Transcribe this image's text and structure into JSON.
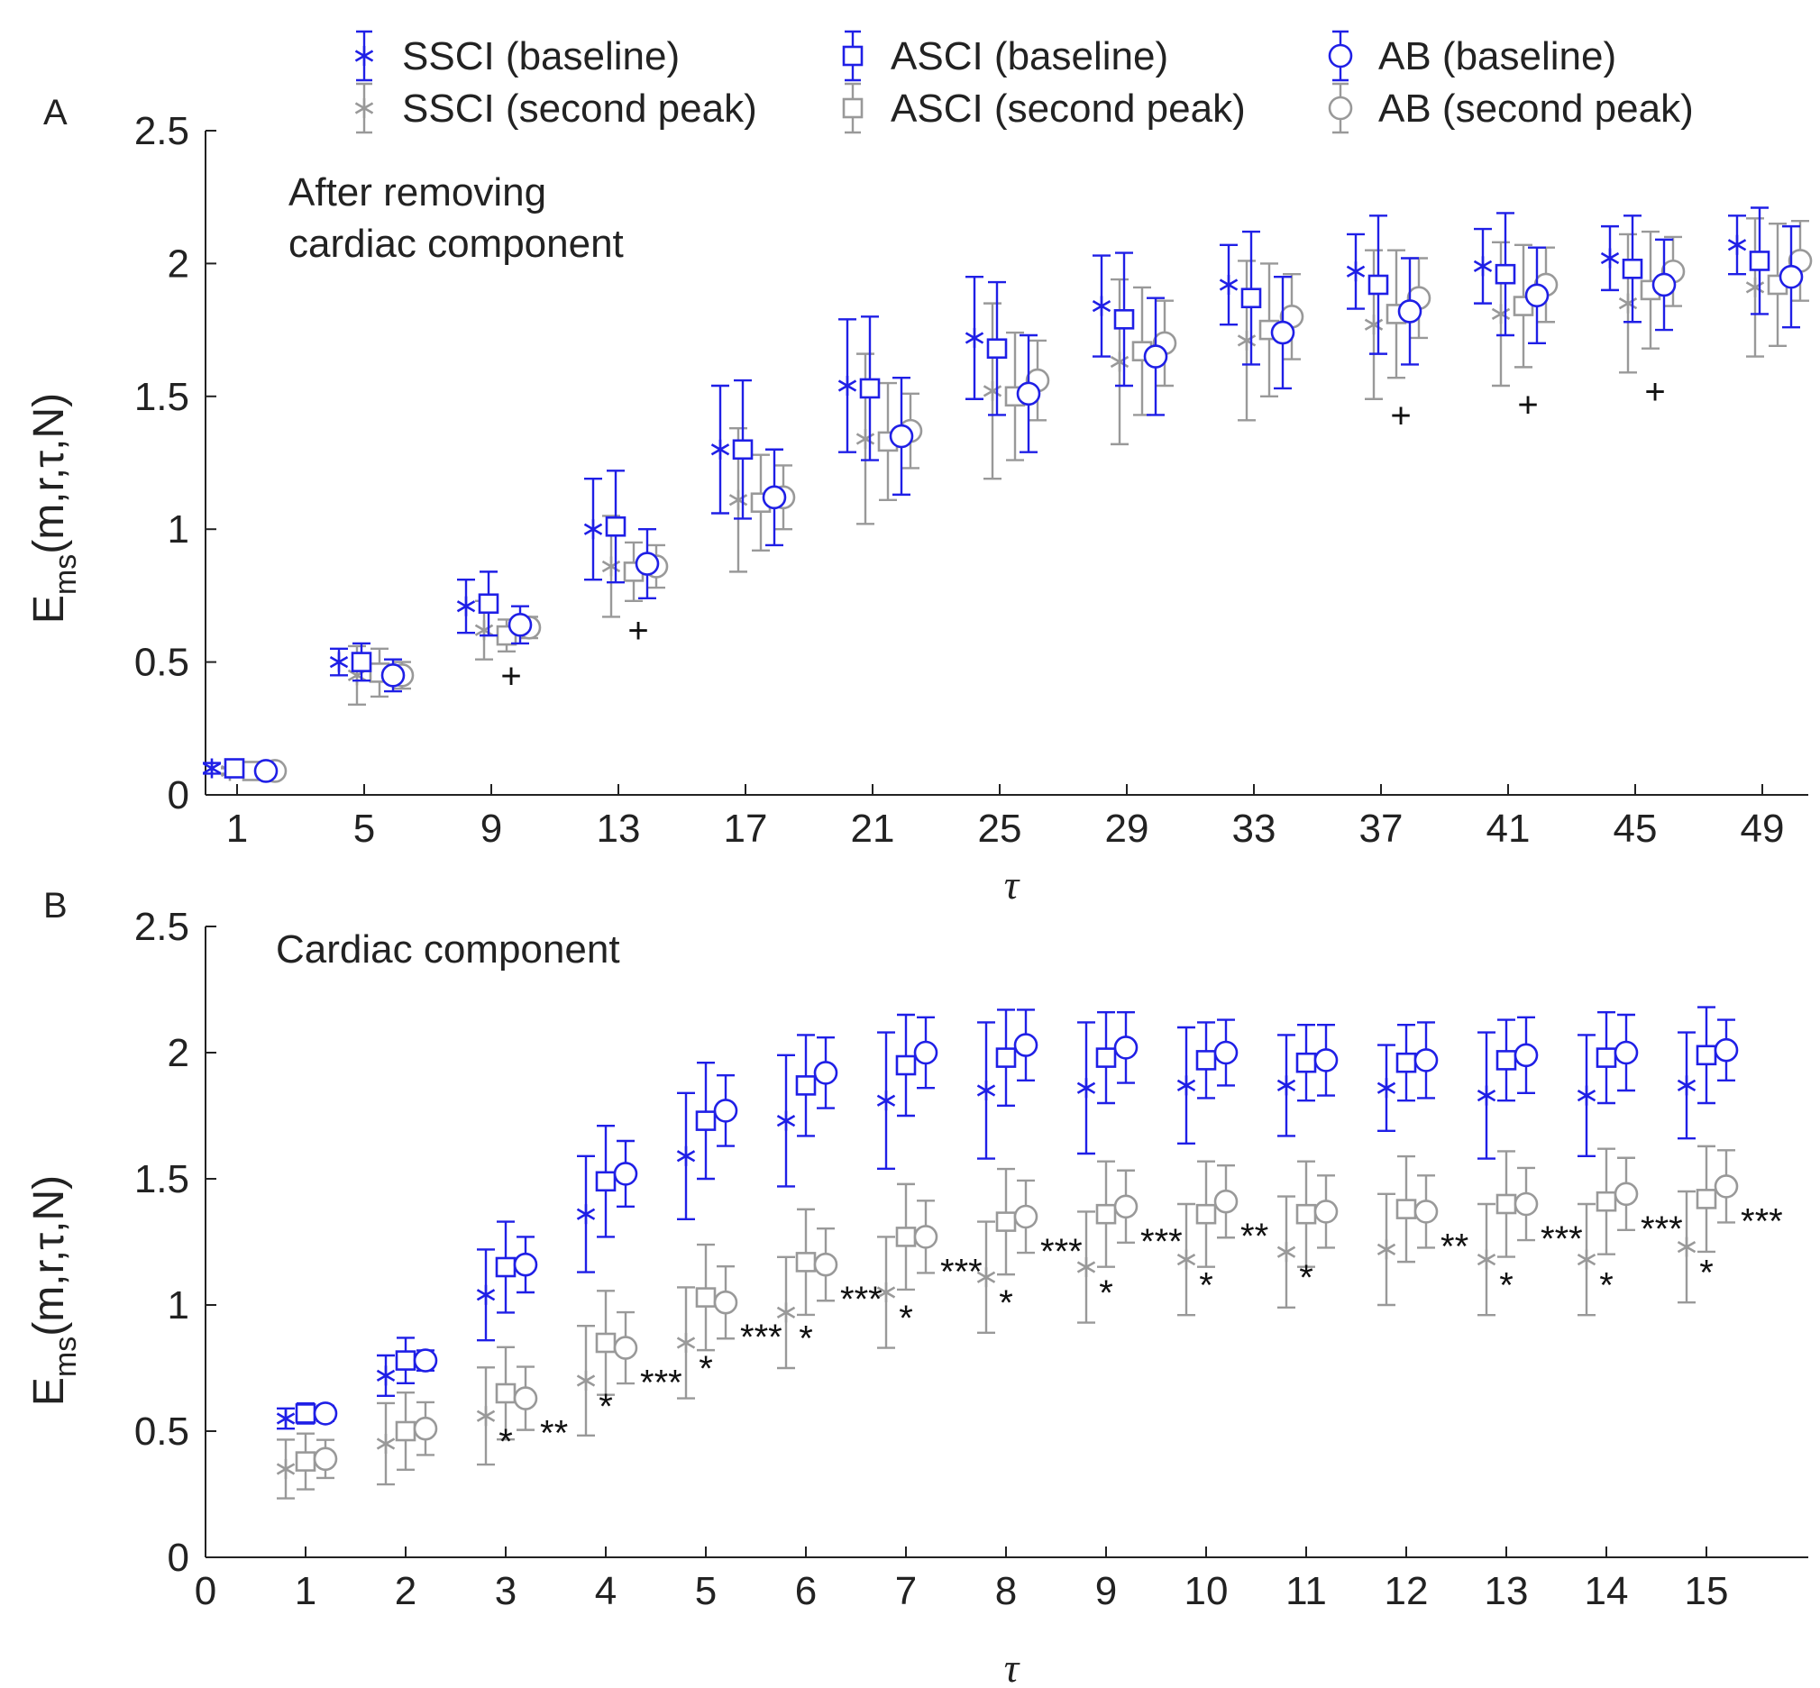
{
  "legend": [
    {
      "label": "SSCI (baseline)",
      "marker": "star",
      "color": "#1f1fe6"
    },
    {
      "label": "ASCI (baseline)",
      "marker": "square",
      "color": "#1f1fe6"
    },
    {
      "label": "AB (baseline)",
      "marker": "circle",
      "color": "#1f1fe6"
    },
    {
      "label": "SSCI (second peak)",
      "marker": "star",
      "color": "#999999"
    },
    {
      "label": "ASCI (second peak)",
      "marker": "square",
      "color": "#999999"
    },
    {
      "label": "AB (second peak)",
      "marker": "circle",
      "color": "#999999"
    }
  ],
  "chart_data": [
    {
      "panel": "A",
      "type": "scatter",
      "subtype": "errorbar",
      "title": "After removing cardiac component",
      "annotation_lines": [
        "After removing",
        "cardiac component"
      ],
      "xlabel": "τ",
      "ylabel": {
        "main": "E",
        "sub": "ms",
        "rest": "(m,r,τ,N)"
      },
      "x_ticks": [
        1,
        5,
        9,
        13,
        17,
        21,
        25,
        29,
        33,
        37,
        41,
        45,
        49
      ],
      "xlim": [
        0,
        51.5
      ],
      "ylim": [
        0,
        2.5
      ],
      "y_ticks": [
        "0",
        "0.5",
        "1",
        "1.5",
        "2",
        "2.5"
      ],
      "series": [
        {
          "name": "SSCI (baseline)",
          "marker": "star",
          "color": "#1f1fe6",
          "values": [
            0.1,
            0.5,
            0.71,
            1.0,
            1.3,
            1.54,
            1.72,
            1.84,
            1.92,
            1.97,
            1.99,
            2.02,
            2.07
          ],
          "errors": [
            0.02,
            0.05,
            0.1,
            0.19,
            0.24,
            0.25,
            0.23,
            0.19,
            0.15,
            0.14,
            0.14,
            0.12,
            0.11
          ]
        },
        {
          "name": "ASCI (baseline)",
          "marker": "square",
          "color": "#1f1fe6",
          "values": [
            0.1,
            0.5,
            0.72,
            1.01,
            1.3,
            1.53,
            1.68,
            1.79,
            1.87,
            1.92,
            1.96,
            1.98,
            2.01
          ],
          "errors": [
            0.02,
            0.07,
            0.12,
            0.21,
            0.26,
            0.27,
            0.25,
            0.25,
            0.25,
            0.26,
            0.23,
            0.2,
            0.2
          ]
        },
        {
          "name": "AB (baseline)",
          "marker": "circle",
          "color": "#1f1fe6",
          "values": [
            0.09,
            0.45,
            0.64,
            0.87,
            1.12,
            1.35,
            1.51,
            1.65,
            1.74,
            1.82,
            1.88,
            1.92,
            1.95
          ],
          "errors": [
            0.01,
            0.06,
            0.07,
            0.13,
            0.18,
            0.22,
            0.22,
            0.22,
            0.21,
            0.2,
            0.18,
            0.17,
            0.19
          ]
        },
        {
          "name": "SSCI (second peak)",
          "marker": "star",
          "color": "#999999",
          "values": [
            0.09,
            0.45,
            0.62,
            0.86,
            1.11,
            1.34,
            1.52,
            1.63,
            1.71,
            1.77,
            1.81,
            1.85,
            1.91
          ],
          "errors": [
            0.01,
            0.11,
            0.11,
            0.19,
            0.27,
            0.32,
            0.33,
            0.31,
            0.3,
            0.28,
            0.27,
            0.26,
            0.26
          ]
        },
        {
          "name": "ASCI (second peak)",
          "marker": "square",
          "color": "#999999",
          "values": [
            0.09,
            0.46,
            0.6,
            0.84,
            1.1,
            1.33,
            1.5,
            1.67,
            1.75,
            1.81,
            1.84,
            1.9,
            1.92
          ],
          "errors": [
            0.01,
            0.09,
            0.06,
            0.11,
            0.18,
            0.22,
            0.24,
            0.24,
            0.25,
            0.24,
            0.23,
            0.22,
            0.23
          ]
        },
        {
          "name": "AB (second peak)",
          "marker": "circle",
          "color": "#999999",
          "values": [
            0.09,
            0.45,
            0.63,
            0.86,
            1.12,
            1.37,
            1.56,
            1.7,
            1.8,
            1.87,
            1.92,
            1.97,
            2.01
          ],
          "errors": [
            0.01,
            0.05,
            0.04,
            0.08,
            0.12,
            0.14,
            0.15,
            0.16,
            0.16,
            0.15,
            0.14,
            0.13,
            0.15
          ]
        }
      ],
      "significance": [
        {
          "tau": 9,
          "label": "+",
          "y": 0.45
        },
        {
          "tau": 13,
          "label": "+",
          "y": 0.62
        },
        {
          "tau": 37,
          "label": "+",
          "y": 1.43
        },
        {
          "tau": 41,
          "label": "+",
          "y": 1.47
        },
        {
          "tau": 45,
          "label": "+",
          "y": 1.52
        }
      ]
    },
    {
      "panel": "B",
      "type": "scatter",
      "subtype": "errorbar",
      "title": "Cardiac component",
      "annotation_lines": [
        "Cardiac component"
      ],
      "xlabel": "τ",
      "ylabel": {
        "main": "E",
        "sub": "ms",
        "rest": "(m,r,τ,N)"
      },
      "x_ticks": [
        0,
        1,
        2,
        3,
        4,
        5,
        6,
        7,
        8,
        9,
        10,
        11,
        12,
        13,
        14,
        15
      ],
      "xlim": [
        0,
        16.2
      ],
      "ylim": [
        0,
        2.5
      ],
      "y_ticks": [
        "0",
        "0.5",
        "1",
        "1.5",
        "2",
        "2.5"
      ],
      "series": [
        {
          "name": "SSCI (baseline)",
          "marker": "star",
          "color": "#1f1fe6",
          "values": [
            0.55,
            0.72,
            1.04,
            1.36,
            1.59,
            1.73,
            1.81,
            1.85,
            1.86,
            1.87,
            1.87,
            1.86,
            1.83,
            1.83,
            1.87
          ],
          "errors": [
            0.04,
            0.08,
            0.18,
            0.23,
            0.25,
            0.26,
            0.27,
            0.27,
            0.26,
            0.23,
            0.2,
            0.17,
            0.25,
            0.24,
            0.21
          ]
        },
        {
          "name": "ASCI (baseline)",
          "marker": "square",
          "color": "#1f1fe6",
          "values": [
            0.57,
            0.78,
            1.15,
            1.49,
            1.73,
            1.87,
            1.95,
            1.98,
            1.98,
            1.97,
            1.96,
            1.96,
            1.97,
            1.98,
            1.99
          ],
          "errors": [
            0.04,
            0.09,
            0.18,
            0.22,
            0.23,
            0.2,
            0.2,
            0.19,
            0.18,
            0.15,
            0.15,
            0.15,
            0.16,
            0.18,
            0.19
          ]
        },
        {
          "name": "AB (baseline)",
          "marker": "circle",
          "color": "#1f1fe6",
          "values": [
            0.57,
            0.78,
            1.16,
            1.52,
            1.77,
            1.92,
            2.0,
            2.03,
            2.02,
            2.0,
            1.97,
            1.97,
            1.99,
            2.0,
            2.01
          ],
          "errors": [
            0.03,
            0.04,
            0.11,
            0.13,
            0.14,
            0.14,
            0.14,
            0.14,
            0.14,
            0.13,
            0.14,
            0.15,
            0.15,
            0.15,
            0.12
          ]
        },
        {
          "name": "SSCI (second peak)",
          "marker": "star",
          "color": "#999999",
          "values": [
            0.35,
            0.45,
            0.56,
            0.7,
            0.85,
            0.97,
            1.05,
            1.11,
            1.15,
            1.18,
            1.21,
            1.22,
            1.18,
            1.18,
            1.23
          ]
        },
        {
          "name": "ASCI (second peak)",
          "marker": "square",
          "color": "#999999",
          "values": [
            0.38,
            0.5,
            0.65,
            0.85,
            1.03,
            1.17,
            1.27,
            1.33,
            1.36,
            1.36,
            1.36,
            1.38,
            1.4,
            1.41,
            1.42
          ]
        },
        {
          "name": "AB (second peak)",
          "marker": "circle",
          "color": "#999999",
          "values": [
            0.39,
            0.51,
            0.63,
            0.83,
            1.01,
            1.16,
            1.27,
            1.35,
            1.39,
            1.41,
            1.37,
            1.37,
            1.4,
            1.44,
            1.47
          ]
        }
      ],
      "significance": [
        {
          "tau": 3,
          "labels": [
            "*",
            "**"
          ]
        },
        {
          "tau": 4,
          "labels": [
            "*",
            "***"
          ]
        },
        {
          "tau": 5,
          "labels": [
            "*",
            "***"
          ]
        },
        {
          "tau": 6,
          "labels": [
            "*",
            "***"
          ]
        },
        {
          "tau": 7,
          "labels": [
            "*",
            "***"
          ]
        },
        {
          "tau": 8,
          "labels": [
            "*",
            "***"
          ]
        },
        {
          "tau": 9,
          "labels": [
            "*",
            "***"
          ]
        },
        {
          "tau": 10,
          "labels": [
            "*",
            "**"
          ]
        },
        {
          "tau": 11,
          "labels": [
            "*",
            ""
          ]
        },
        {
          "tau": 12,
          "labels": [
            "",
            "**"
          ]
        },
        {
          "tau": 13,
          "labels": [
            "*",
            "***"
          ]
        },
        {
          "tau": 14,
          "labels": [
            "*",
            "***"
          ]
        },
        {
          "tau": 15,
          "labels": [
            "*",
            "***"
          ]
        }
      ]
    }
  ]
}
